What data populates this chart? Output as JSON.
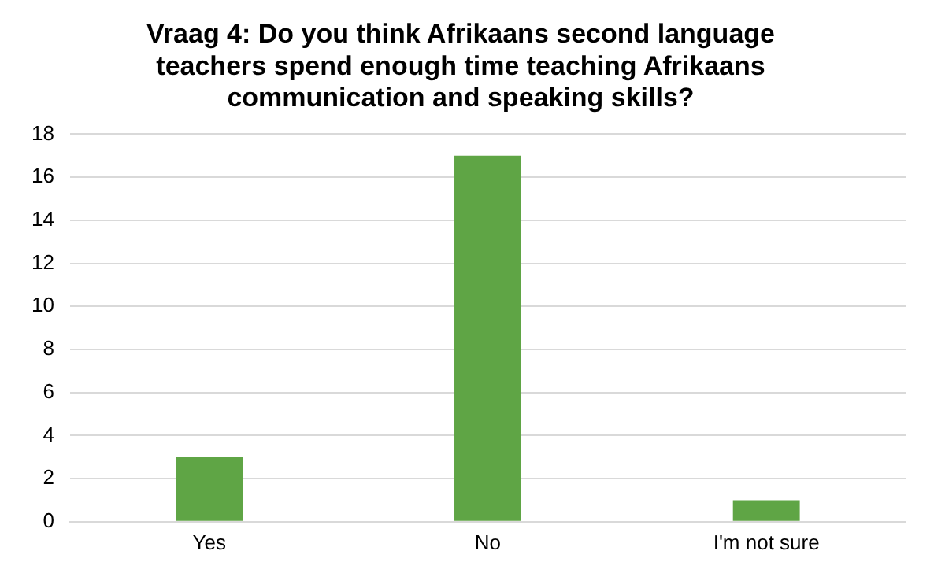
{
  "chart_data": {
    "type": "bar",
    "title": "Vraag 4: Do you think Afrikaans second language teachers spend enough time teaching Afrikaans communication and speaking skills?",
    "categories": [
      "Yes",
      "No",
      "I'm not sure"
    ],
    "values": [
      3,
      17,
      1
    ],
    "color": "#5fa545",
    "ylim": [
      0,
      18
    ],
    "yticks": [
      0,
      2,
      4,
      6,
      8,
      10,
      12,
      14,
      16,
      18
    ],
    "grid": "y",
    "legend": false
  }
}
